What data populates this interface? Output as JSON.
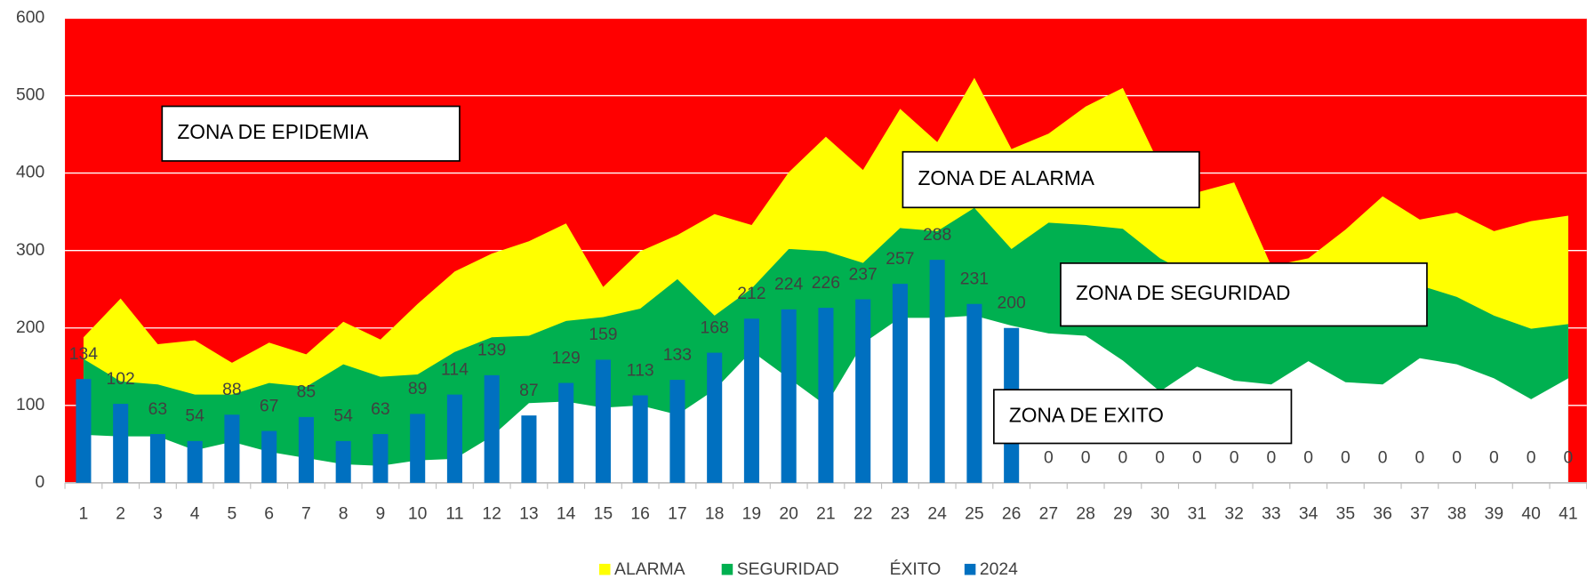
{
  "chart_data": {
    "type": "area_bar",
    "plot_color": "#ff0000",
    "categories": [
      "1",
      "2",
      "3",
      "4",
      "5",
      "6",
      "7",
      "8",
      "9",
      "10",
      "11",
      "12",
      "13",
      "14",
      "15",
      "16",
      "17",
      "18",
      "19",
      "20",
      "21",
      "22",
      "23",
      "24",
      "25",
      "26",
      "27",
      "28",
      "29",
      "30",
      "31",
      "32",
      "33",
      "34",
      "35",
      "36",
      "37",
      "38",
      "39",
      "40",
      "41"
    ],
    "series": [
      {
        "name": "ALARMA",
        "type": "area",
        "color": "#ffff00",
        "values": [
          188,
          238,
          179,
          184,
          155,
          181,
          166,
          208,
          185,
          231,
          273,
          296,
          312,
          335,
          253,
          299,
          320,
          347,
          333,
          401,
          447,
          404,
          483,
          440,
          523,
          431,
          451,
          486,
          510,
          410,
          375,
          388,
          280,
          290,
          327,
          370,
          340,
          349,
          325,
          338,
          345
        ]
      },
      {
        "name": "SEGURIDAD",
        "type": "area",
        "color": "#00b050",
        "values": [
          160,
          131,
          127,
          114,
          114,
          129,
          124,
          153,
          137,
          140,
          169,
          188,
          190,
          209,
          214,
          225,
          263,
          216,
          251,
          302,
          299,
          284,
          329,
          325,
          355,
          302,
          336,
          333,
          328,
          290,
          265,
          255,
          203,
          265,
          265,
          275,
          255,
          240,
          216,
          199,
          205
        ]
      },
      {
        "name": "ÉXITO",
        "type": "area",
        "color": "#ffffff",
        "values": [
          62,
          60,
          60,
          42,
          53,
          40,
          32,
          24,
          22,
          29,
          31,
          60,
          103,
          105,
          97,
          100,
          88,
          120,
          170,
          135,
          100,
          180,
          213,
          213,
          216,
          203,
          193,
          190,
          158,
          118,
          150,
          132,
          127,
          157,
          130,
          127,
          161,
          153,
          135,
          108,
          135
        ]
      },
      {
        "name": "2024",
        "type": "bar",
        "color": "#0070c0",
        "values": [
          134,
          102,
          63,
          54,
          88,
          67,
          85,
          54,
          63,
          89,
          114,
          139,
          87,
          129,
          159,
          113,
          133,
          168,
          212,
          224,
          226,
          237,
          257,
          288,
          231,
          200,
          0,
          0,
          0,
          0,
          0,
          0,
          0,
          0,
          0,
          0,
          0,
          0,
          0,
          0,
          0
        ]
      }
    ],
    "annotations": [
      "ZONA DE EPIDEMIA",
      "ZONA DE ALARMA",
      "ZONA DE SEGURIDAD",
      "ZONA DE EXITO"
    ],
    "ylim": [
      0,
      600
    ],
    "yticks": [
      0,
      100,
      200,
      300,
      400,
      500,
      600
    ],
    "grid": true,
    "legend": "bottom"
  }
}
